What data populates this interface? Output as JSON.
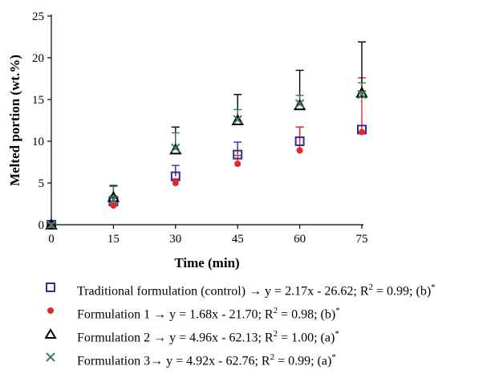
{
  "chart_data": {
    "type": "scatter",
    "xlabel": "Time (min)",
    "ylabel": "Melted portion (wt.%)",
    "xlim": [
      0,
      75
    ],
    "ylim": [
      0,
      25
    ],
    "x_ticks": [
      0,
      15,
      30,
      45,
      60,
      75
    ],
    "y_ticks": [
      0,
      5,
      10,
      15,
      20,
      25
    ],
    "grid": false,
    "legend_position": "bottom",
    "x": [
      0,
      15,
      30,
      45,
      60,
      75
    ],
    "series": [
      {
        "name": "Traditional formulation (control)",
        "equation": "y = 2.17x - 26.62",
        "r2": "R² = 0.99",
        "group": "(b)",
        "marker": "square",
        "color": "#2e3192",
        "values": [
          0,
          2.8,
          5.8,
          8.4,
          10.0,
          11.4
        ],
        "errors": [
          0,
          0.5,
          1.3,
          1.5,
          1.7,
          0
        ]
      },
      {
        "name": "Formulation 1",
        "equation": "y = 1.68x - 21.70",
        "r2": "R² = 0.98",
        "group": "(b)",
        "marker": "circle",
        "color": "#e8262d",
        "values": [
          0,
          2.3,
          5.0,
          7.3,
          8.9,
          11.1
        ],
        "errors": [
          0,
          0.3,
          0.5,
          1.0,
          2.8,
          6.5
        ]
      },
      {
        "name": "Formulation 2",
        "equation": "y = 4.96x - 62.13",
        "r2": "R² = 1.00",
        "group": "(a)",
        "marker": "triangle",
        "color": "#000000",
        "values": [
          0,
          3.3,
          9.0,
          12.5,
          14.3,
          15.8
        ],
        "errors": [
          0,
          1.4,
          2.7,
          3.1,
          4.2,
          6.1
        ]
      },
      {
        "name": "Formulation 3",
        "equation": "y = 4.92x - 62.76",
        "r2": "R² = 0.99",
        "group": "(a)",
        "marker": "x",
        "color": "#3d7a5e",
        "values": [
          0,
          3.0,
          9.2,
          12.6,
          14.5,
          15.6
        ],
        "errors": [
          0,
          1.6,
          1.8,
          1.2,
          1.0,
          1.4
        ]
      }
    ],
    "legend": [
      {
        "text": "Traditional formulation (control) → y = 2.17x - 26.62; R",
        "sup": "2",
        "tail": " = 0.99; (b)",
        "star": "*"
      },
      {
        "text": "Formulation 1 → y = 1.68x - 21.70; R",
        "sup": "2",
        "tail": " = 0.98; (b)",
        "star": "*"
      },
      {
        "text": "Formulation 2 → y = 4.96x - 62.13; R",
        "sup": "2",
        "tail": " = 1.00; (a)",
        "star": "*"
      },
      {
        "text": "Formulation 3→ y = 4.92x - 62.76; R",
        "sup": "2",
        "tail": " = 0.99; (a)",
        "star": "*"
      }
    ]
  }
}
